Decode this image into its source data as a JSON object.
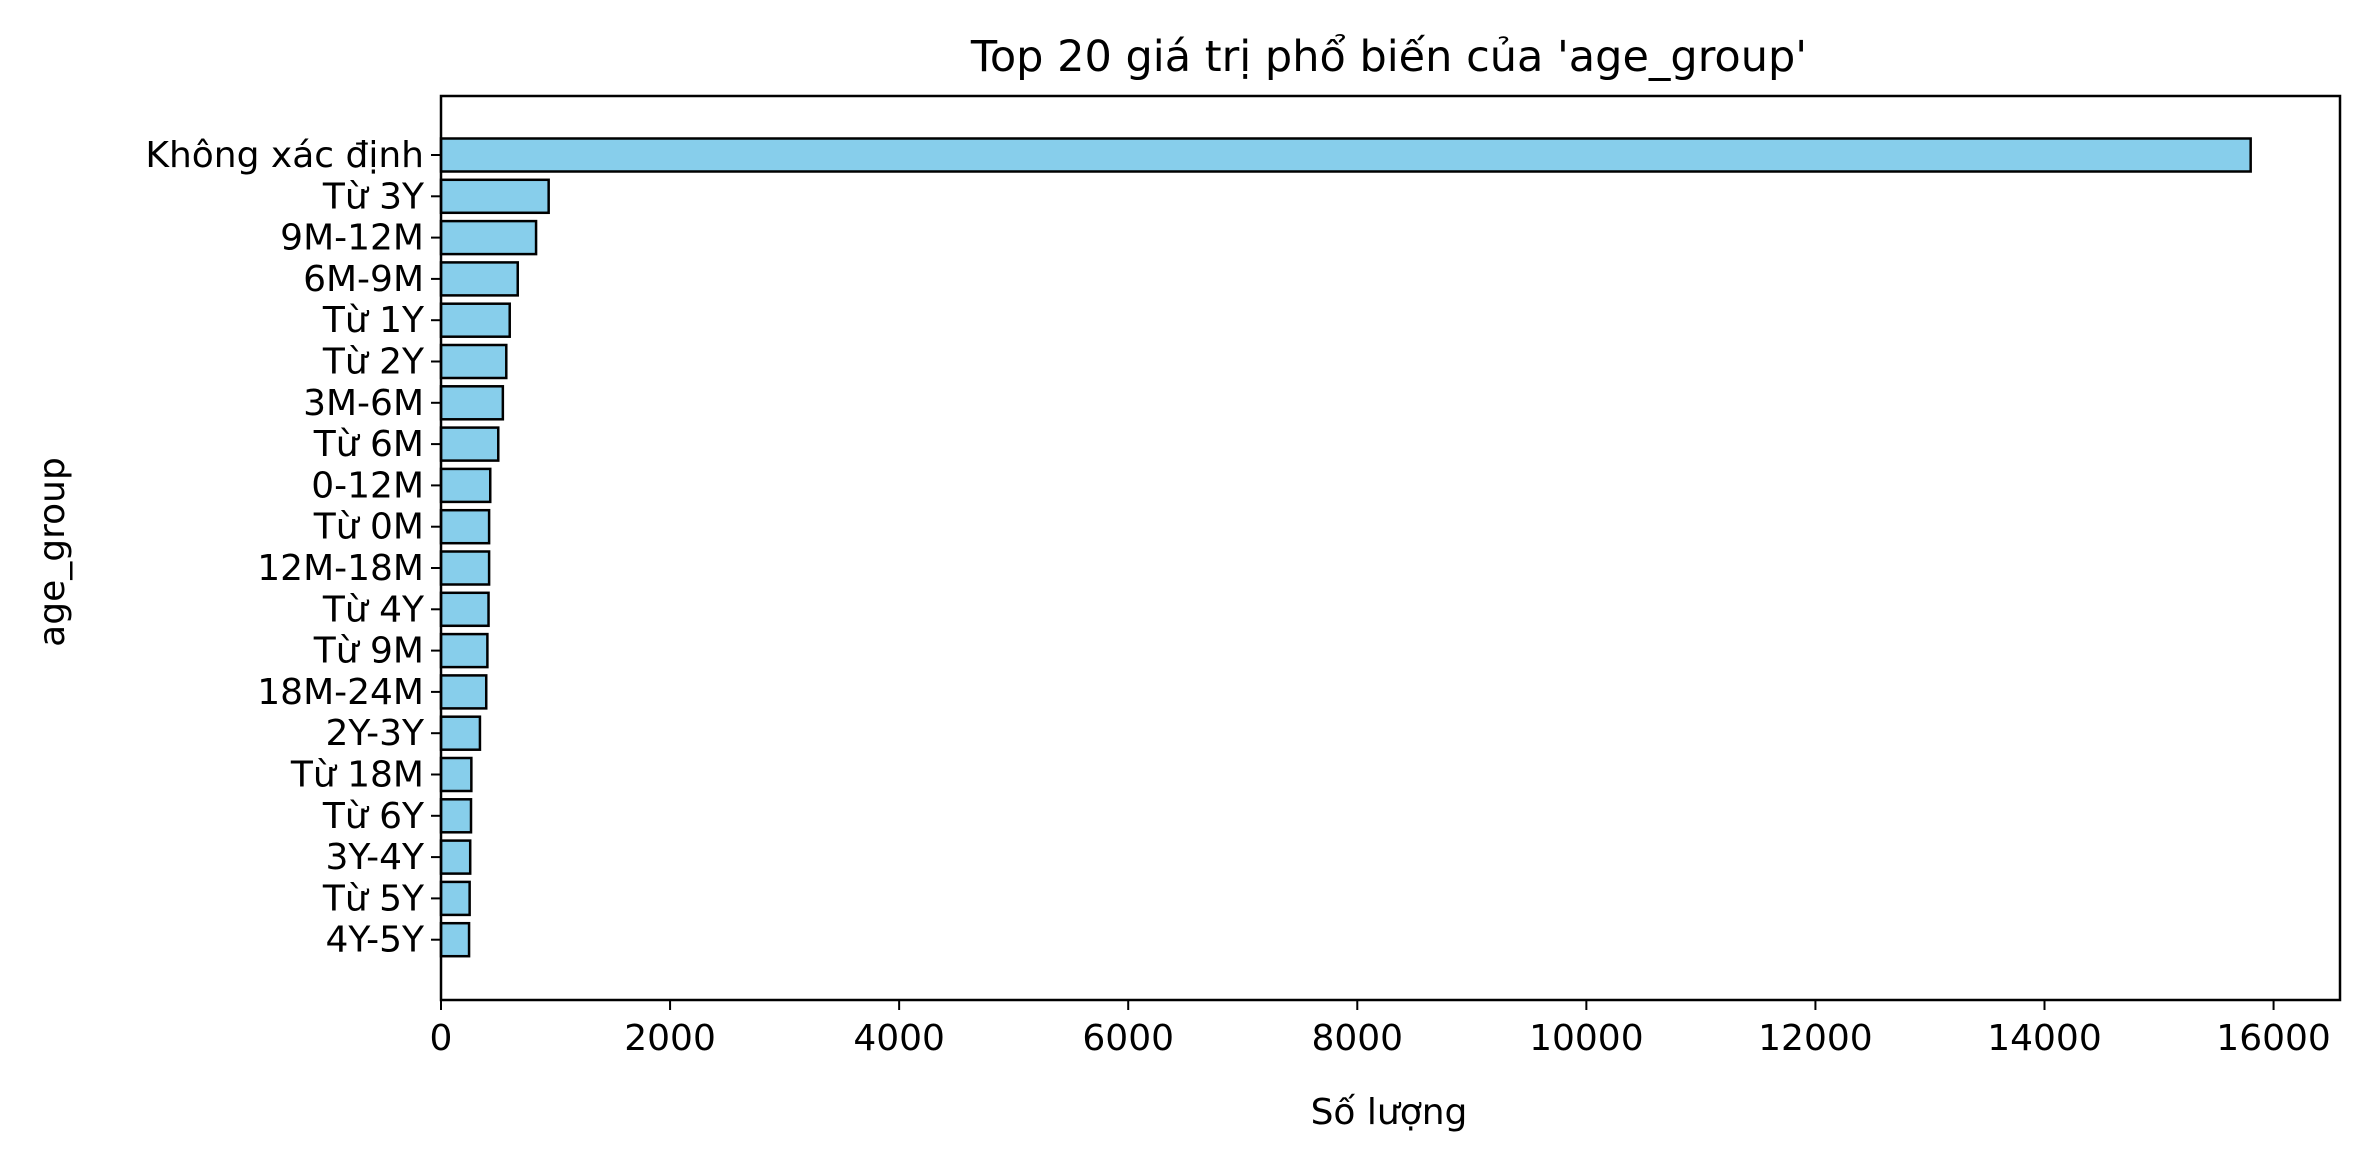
{
  "chart_data": {
    "type": "bar",
    "orientation": "horizontal",
    "title": "Top 20 giá trị phổ biến của 'age_group'",
    "xlabel": "Số lượng",
    "ylabel": "age_group",
    "categories": [
      "Không xác định",
      "Từ 3Y",
      "9M-12M",
      "6M-9M",
      "Từ 1Y",
      "Từ 2Y",
      "3M-6M",
      "Từ 6M",
      "0-12M",
      "Từ 0M",
      "12M-18M",
      "Từ 4Y",
      "Từ 9M",
      "18M-24M",
      "2Y-3Y",
      "Từ 18M",
      "Từ 6Y",
      "3Y-4Y",
      "Từ 5Y",
      "4Y-5Y"
    ],
    "values": [
      15800,
      940,
      830,
      670,
      600,
      570,
      540,
      500,
      430,
      420,
      420,
      415,
      405,
      395,
      340,
      265,
      262,
      255,
      250,
      245
    ],
    "xlim": [
      0,
      16580
    ],
    "xticks": [
      "0",
      "2000",
      "4000",
      "6000",
      "8000",
      "10000",
      "12000",
      "14000",
      "16000"
    ],
    "grid": false,
    "bar_color": "#87ceeb",
    "edge_color": "#000000"
  }
}
